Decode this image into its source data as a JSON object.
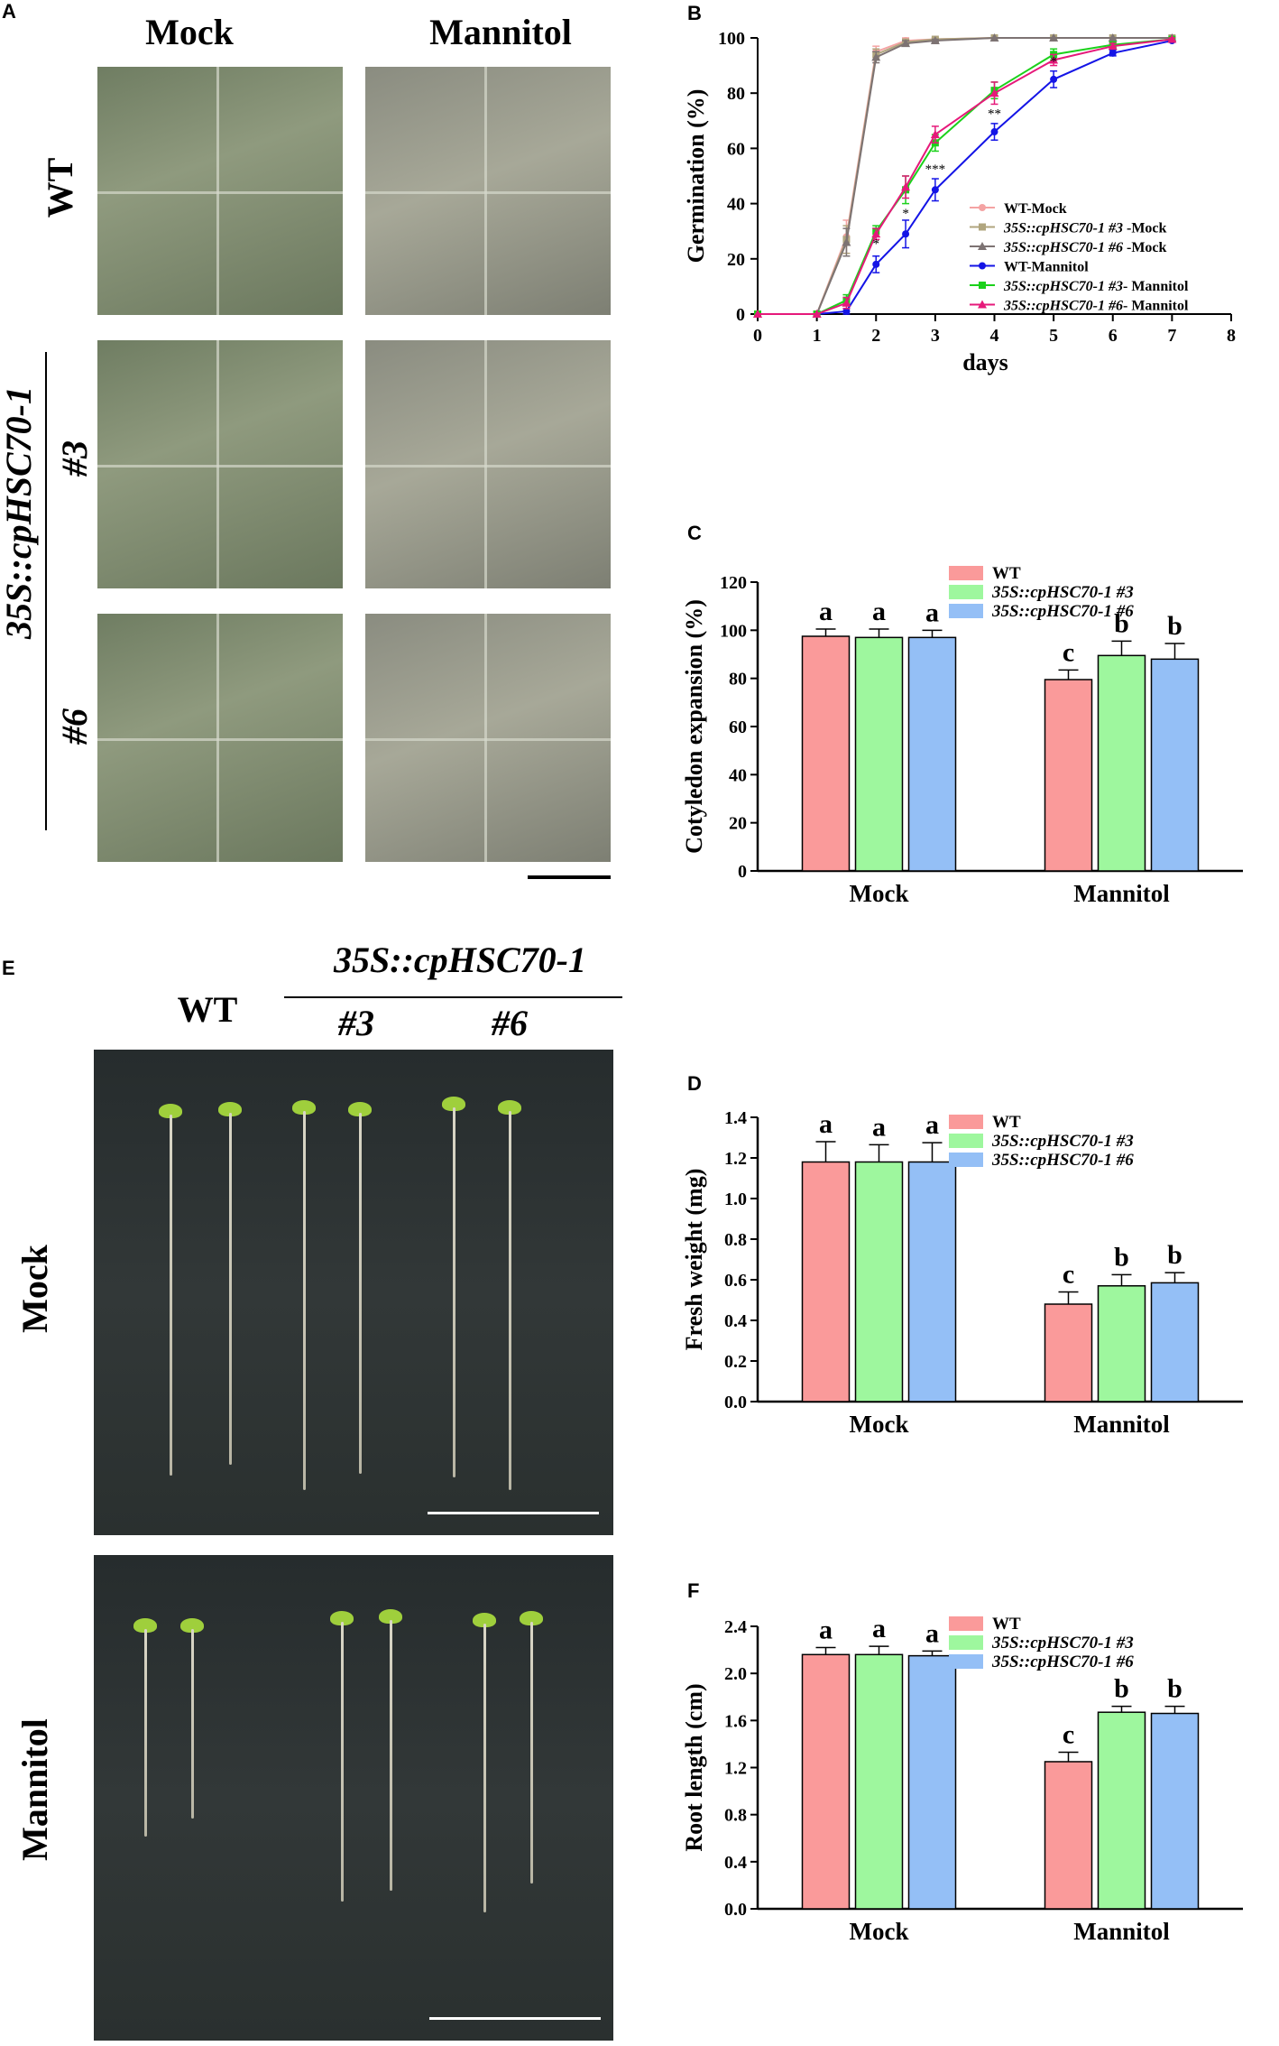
{
  "panels": {
    "A": {
      "letter": "A",
      "col_headers": [
        "Mock",
        "Mannitol"
      ],
      "row_wt": "WT",
      "row_transgenic": "35S::cpHSC70-1",
      "line3": "#3",
      "line6": "#6"
    },
    "E": {
      "letter": "E",
      "wt": "WT",
      "transgenic": "35S::cpHSC70-1",
      "line3": "#3",
      "line6": "#6",
      "row_mock": "Mock",
      "row_mannitol": "Mannitol"
    }
  },
  "colors": {
    "wt": "#fa9a9a",
    "line3": "#9ef79e",
    "line6": "#94bff6",
    "wt_mock": "#f4a3a3",
    "l3_mock": "#b0a57e",
    "l6_mock": "#7d7373",
    "wt_man": "#1414e6",
    "l3_man": "#1bd11b",
    "l6_man": "#e6197a"
  },
  "chart_data": [
    {
      "panel": "B",
      "type": "line",
      "letter": "B",
      "xlabel": "days",
      "ylabel": "Germination (%)",
      "xlim": [
        0,
        8
      ],
      "ylim": [
        0,
        100
      ],
      "xticks": [
        0,
        1,
        2,
        3,
        4,
        5,
        6,
        7,
        8
      ],
      "yticks": [
        0,
        20,
        40,
        60,
        80,
        100
      ],
      "legend_position": "bottom-right",
      "series": [
        {
          "name": "WT-Mock",
          "marker": "circle",
          "color": "#f4a3a3",
          "x": [
            0,
            1,
            1.5,
            2,
            2.5,
            3,
            4,
            5,
            6,
            7
          ],
          "y": [
            0,
            0,
            28,
            95,
            99,
            99.5,
            100,
            100,
            100,
            100
          ],
          "err": [
            0,
            0,
            6,
            2,
            1,
            0.5,
            0,
            0,
            0,
            0
          ]
        },
        {
          "name": "35S::cpHSC70-1 #3 -Mock",
          "marker": "square",
          "color": "#b0a57e",
          "x": [
            0,
            1,
            1.5,
            2,
            2.5,
            3,
            4,
            5,
            6,
            7
          ],
          "y": [
            0,
            0,
            27,
            94,
            98.5,
            99.5,
            100,
            100,
            100,
            100
          ],
          "err": [
            0,
            0,
            5,
            2,
            1,
            0.5,
            0,
            0,
            0,
            0
          ]
        },
        {
          "name": "35S::cpHSC70-1 #6 -Mock",
          "marker": "triangle",
          "color": "#7d7373",
          "x": [
            0,
            1,
            1.5,
            2,
            2.5,
            3,
            4,
            5,
            6,
            7
          ],
          "y": [
            0,
            0,
            26,
            93,
            98,
            99,
            100,
            100,
            100,
            100
          ],
          "err": [
            0,
            0,
            5,
            2,
            1,
            0.5,
            0,
            0,
            0,
            0
          ]
        },
        {
          "name": "WT-Mannitol",
          "marker": "circle",
          "color": "#1414e6",
          "x": [
            0,
            1,
            1.5,
            2,
            2.5,
            3,
            4,
            5,
            6,
            7
          ],
          "y": [
            0,
            0,
            1,
            18,
            29,
            45,
            66,
            85,
            94.5,
            99
          ],
          "err": [
            0,
            0,
            1,
            3,
            5,
            4,
            3,
            3,
            1,
            0.5
          ]
        },
        {
          "name": "35S::cpHSC70-1 #3- Mannitol",
          "marker": "square",
          "color": "#1bd11b",
          "x": [
            0,
            1,
            1.5,
            2,
            2.5,
            3,
            4,
            5,
            6,
            7
          ],
          "y": [
            0,
            0,
            5,
            30,
            45,
            62,
            81,
            94,
            97.5,
            99.5
          ],
          "err": [
            0,
            0,
            2,
            2,
            5,
            3,
            3,
            2,
            1,
            0.5
          ]
        },
        {
          "name": "35S::cpHSC70-1 #6- Mannitol",
          "marker": "triangle",
          "color": "#e6197a",
          "x": [
            0,
            1,
            1.5,
            2,
            2.5,
            3,
            4,
            5,
            6,
            7
          ],
          "y": [
            0,
            0,
            4,
            29,
            46,
            65,
            80,
            92,
            97,
            99.5
          ],
          "err": [
            0,
            0,
            2,
            2,
            4,
            3,
            4,
            2,
            1,
            0.5
          ]
        }
      ],
      "significance": [
        {
          "x": 2,
          "y": 24,
          "text": "*"
        },
        {
          "x": 2.5,
          "y": 35,
          "text": "*"
        },
        {
          "x": 3,
          "y": 51,
          "text": "***"
        },
        {
          "x": 4,
          "y": 71,
          "text": "**"
        },
        {
          "x": 5,
          "y": 90,
          "text": "*"
        }
      ]
    },
    {
      "panel": "C",
      "type": "bar",
      "letter": "C",
      "ylabel": "Cotyledon expansion (%)",
      "ylim": [
        0,
        120
      ],
      "yticks": [
        0,
        20,
        40,
        60,
        80,
        100,
        120
      ],
      "categories": [
        "Mock",
        "Mannitol"
      ],
      "legend_position": "top-right",
      "series": [
        {
          "name": "WT",
          "values": [
            97.5,
            79.5
          ],
          "err": [
            3,
            4
          ],
          "letters": [
            "a",
            "c"
          ]
        },
        {
          "name": "35S::cpHSC70-1 #3",
          "values": [
            97.0,
            89.5
          ],
          "err": [
            3.5,
            6
          ],
          "letters": [
            "a",
            "b"
          ]
        },
        {
          "name": "35S::cpHSC70-1 #6",
          "values": [
            97.0,
            88.0
          ],
          "err": [
            3,
            6.5
          ],
          "letters": [
            "a",
            "b"
          ]
        }
      ]
    },
    {
      "panel": "D",
      "type": "bar",
      "letter": "D",
      "ylabel": "Fresh weight (mg)",
      "ylim": [
        0,
        1.4
      ],
      "yticks": [
        0.0,
        0.2,
        0.4,
        0.6,
        0.8,
        1.0,
        1.2,
        1.4
      ],
      "categories": [
        "Mock",
        "Mannitol"
      ],
      "legend_position": "top-right",
      "series": [
        {
          "name": "WT",
          "values": [
            1.18,
            0.48
          ],
          "err": [
            0.1,
            0.06
          ],
          "letters": [
            "a",
            "c"
          ]
        },
        {
          "name": "35S::cpHSC70-1 #3",
          "values": [
            1.18,
            0.57
          ],
          "err": [
            0.085,
            0.055
          ],
          "letters": [
            "a",
            "b"
          ]
        },
        {
          "name": "35S::cpHSC70-1 #6",
          "values": [
            1.18,
            0.585
          ],
          "err": [
            0.095,
            0.05
          ],
          "letters": [
            "a",
            "b"
          ]
        }
      ]
    },
    {
      "panel": "F",
      "type": "bar",
      "letter": "F",
      "ylabel": "Root length (cm)",
      "ylim": [
        0,
        2.4
      ],
      "yticks": [
        0.0,
        0.4,
        0.8,
        1.2,
        1.6,
        2.0,
        2.4
      ],
      "categories": [
        "Mock",
        "Mannitol"
      ],
      "legend_position": "top-right",
      "series": [
        {
          "name": "WT",
          "values": [
            2.16,
            1.25
          ],
          "err": [
            0.06,
            0.08
          ],
          "letters": [
            "a",
            "c"
          ]
        },
        {
          "name": "35S::cpHSC70-1 #3",
          "values": [
            2.16,
            1.67
          ],
          "err": [
            0.07,
            0.05
          ],
          "letters": [
            "a",
            "b"
          ]
        },
        {
          "name": "35S::cpHSC70-1 #6",
          "values": [
            2.15,
            1.66
          ],
          "err": [
            0.04,
            0.06
          ],
          "letters": [
            "a",
            "b"
          ]
        }
      ]
    }
  ]
}
